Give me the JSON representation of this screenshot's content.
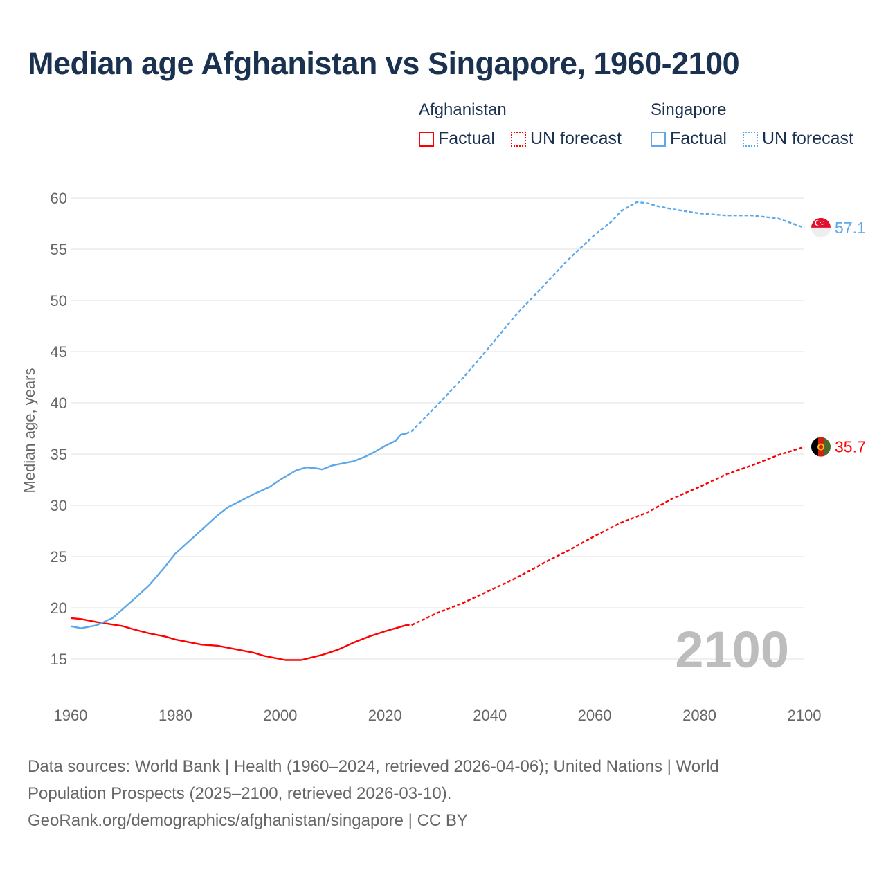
{
  "title": "Median age Afghanistan vs Singapore, 1960-2100",
  "legend": {
    "groups": [
      {
        "name": "Afghanistan",
        "factual": "Factual",
        "forecast": "UN forecast",
        "color": "#ff0000"
      },
      {
        "name": "Singapore",
        "factual": "Factual",
        "forecast": "UN forecast",
        "color": "#5ca8ea"
      }
    ]
  },
  "watermark_year": "2100",
  "footer": {
    "line1": "Data sources: World Bank | Health (1960–2024, retrieved 2026-04-06); United Nations | World",
    "line2": "Population Prospects (2025–2100, retrieved 2026-03-10).",
    "line3": "GeoRank.org/demographics/afghanistan/singapore | CC BY"
  },
  "chart_data": {
    "type": "line",
    "title": "Median age Afghanistan vs Singapore, 1960-2100",
    "xlabel": "",
    "ylabel": "Median age, years",
    "xlim": [
      1960,
      2100
    ],
    "ylim": [
      15,
      60
    ],
    "xticks": [
      1960,
      1980,
      2000,
      2020,
      2040,
      2060,
      2080,
      2100
    ],
    "yticks": [
      15,
      20,
      25,
      30,
      35,
      40,
      45,
      50,
      55,
      60
    ],
    "grid": true,
    "legend_position": "top-right",
    "series": [
      {
        "name": "Afghanistan",
        "color": "#ff0000",
        "end_label": "35.7",
        "flag": "afghanistan",
        "factual": {
          "x": [
            1960,
            1962,
            1965,
            1970,
            1972,
            1975,
            1978,
            1980,
            1985,
            1988,
            1990,
            1995,
            1997,
            2000,
            2001,
            2004,
            2008,
            2011,
            2014,
            2017,
            2020,
            2024
          ],
          "y": [
            19.0,
            18.9,
            18.6,
            18.2,
            17.9,
            17.5,
            17.2,
            16.9,
            16.4,
            16.3,
            16.1,
            15.6,
            15.3,
            15.0,
            14.9,
            14.9,
            15.4,
            15.9,
            16.6,
            17.2,
            17.7,
            18.3
          ]
        },
        "forecast": {
          "x": [
            2024,
            2025,
            2030,
            2035,
            2040,
            2045,
            2050,
            2055,
            2060,
            2065,
            2070,
            2075,
            2080,
            2085,
            2090,
            2095,
            2100
          ],
          "y": [
            18.3,
            18.3,
            19.5,
            20.5,
            21.7,
            22.9,
            24.3,
            25.6,
            27.0,
            28.3,
            29.3,
            30.7,
            31.8,
            33.0,
            33.9,
            34.9,
            35.7
          ]
        }
      },
      {
        "name": "Singapore",
        "color": "#5ca8ea",
        "end_label": "57.1",
        "flag": "singapore",
        "factual": {
          "x": [
            1960,
            1962,
            1965,
            1968,
            1970,
            1972,
            1975,
            1978,
            1980,
            1985,
            1988,
            1990,
            1995,
            1998,
            2000,
            2003,
            2005,
            2007,
            2008,
            2010,
            2014,
            2016,
            2018,
            2020,
            2022,
            2023,
            2024
          ],
          "y": [
            18.2,
            18.0,
            18.3,
            19.0,
            19.9,
            20.8,
            22.2,
            24.0,
            25.3,
            27.6,
            29.0,
            29.8,
            31.1,
            31.8,
            32.5,
            33.4,
            33.7,
            33.6,
            33.5,
            33.9,
            34.3,
            34.7,
            35.2,
            35.8,
            36.3,
            36.9,
            37.0
          ]
        },
        "forecast": {
          "x": [
            2024,
            2025,
            2030,
            2035,
            2040,
            2045,
            2050,
            2055,
            2060,
            2063,
            2065,
            2068,
            2070,
            2072,
            2075,
            2080,
            2085,
            2090,
            2095,
            2100
          ],
          "y": [
            37.0,
            37.2,
            39.8,
            42.5,
            45.5,
            48.6,
            51.3,
            54.0,
            56.4,
            57.6,
            58.7,
            59.6,
            59.5,
            59.2,
            58.9,
            58.5,
            58.3,
            58.3,
            58.0,
            57.1
          ]
        }
      }
    ]
  }
}
